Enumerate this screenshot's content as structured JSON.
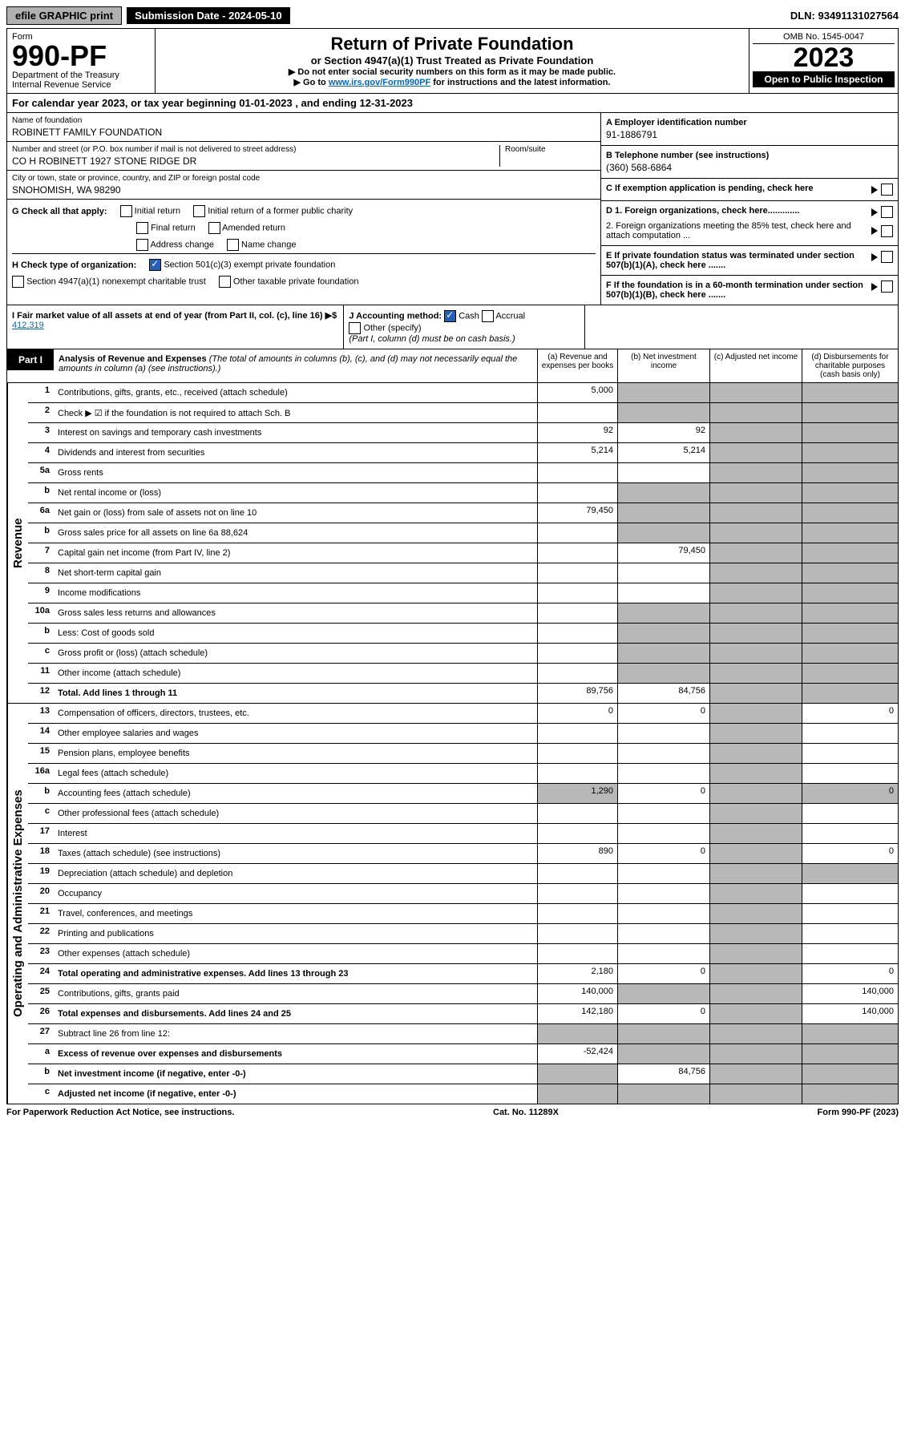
{
  "top": {
    "efile": "efile GRAPHIC print",
    "sub_label": "Submission Date - 2024-05-10",
    "dln": "DLN: 93491131027564"
  },
  "hdr": {
    "form": "Form",
    "num": "990-PF",
    "dept": "Department of the Treasury",
    "irs": "Internal Revenue Service",
    "title": "Return of Private Foundation",
    "sub": "or Section 4947(a)(1) Trust Treated as Private Foundation",
    "i1": "▶ Do not enter social security numbers on this form as it may be made public.",
    "i2_a": "▶ Go to ",
    "i2_b": "www.irs.gov/Form990PF",
    "i2_c": " for instructions and the latest information.",
    "omb": "OMB No. 1545-0047",
    "yr": "2023",
    "open": "Open to Public Inspection"
  },
  "cal": "For calendar year 2023, or tax year beginning 01-01-2023           , and ending 12-31-2023",
  "info": {
    "name_l": "Name of foundation",
    "name": "ROBINETT FAMILY FOUNDATION",
    "addr_l": "Number and street (or P.O. box number if mail is not delivered to street address)",
    "addr": "CO H ROBINETT 1927 STONE RIDGE DR",
    "room_l": "Room/suite",
    "city_l": "City or town, state or province, country, and ZIP or foreign postal code",
    "city": "SNOHOMISH, WA  98290",
    "a_l": "A Employer identification number",
    "a": "91-1886791",
    "b_l": "B Telephone number (see instructions)",
    "b": "(360) 568-6864",
    "c": "C If exemption application is pending, check here",
    "d1": "D 1. Foreign organizations, check here.............",
    "d2": "2. Foreign organizations meeting the 85% test, check here and attach computation ...",
    "e": "E  If private foundation status was terminated under section 507(b)(1)(A), check here .......",
    "f": "F  If the foundation is in a 60-month termination under section 507(b)(1)(B), check here ......."
  },
  "g": {
    "label": "G Check all that apply:",
    "o1": "Initial return",
    "o2": "Initial return of a former public charity",
    "o3": "Final return",
    "o4": "Amended return",
    "o5": "Address change",
    "o6": "Name change"
  },
  "h": {
    "label": "H Check type of organization:",
    "o1": "Section 501(c)(3) exempt private foundation",
    "o2": "Section 4947(a)(1) nonexempt charitable trust",
    "o3": "Other taxable private foundation"
  },
  "i": {
    "label": "I Fair market value of all assets at end of year (from Part II, col. (c), line 16) ▶$ ",
    "val": "412,319"
  },
  "j": {
    "label": "J Accounting method:",
    "o1": "Cash",
    "o2": "Accrual",
    "o3": "Other (specify)",
    "note": "(Part I, column (d) must be on cash basis.)"
  },
  "part1": {
    "tag": "Part I",
    "title": "Analysis of Revenue and Expenses ",
    "note": "(The total of amounts in columns (b), (c), and (d) may not necessarily equal the amounts in column (a) (see instructions).)",
    "ca": "(a)   Revenue and expenses per books",
    "cb": "(b)   Net investment income",
    "cc": "(c)   Adjusted net income",
    "cd": "(d)   Disbursements for charitable purposes (cash basis only)"
  },
  "rev": {
    "side": "Revenue",
    "rows": [
      {
        "n": "1",
        "d": "Contributions, gifts, grants, etc., received (attach schedule)",
        "a": "5,000"
      },
      {
        "n": "2",
        "d": "Check ▶ ☑ if the foundation is not required to attach Sch. B"
      },
      {
        "n": "3",
        "d": "Interest on savings and temporary cash investments",
        "a": "92",
        "b": "92"
      },
      {
        "n": "4",
        "d": "Dividends and interest from securities",
        "a": "5,214",
        "b": "5,214"
      },
      {
        "n": "5a",
        "d": "Gross rents"
      },
      {
        "n": "b",
        "d": "Net rental income or (loss)"
      },
      {
        "n": "6a",
        "d": "Net gain or (loss) from sale of assets not on line 10",
        "a": "79,450"
      },
      {
        "n": "b",
        "d": "Gross sales price for all assets on line 6a",
        "inline": "88,624"
      },
      {
        "n": "7",
        "d": "Capital gain net income (from Part IV, line 2)",
        "b": "79,450"
      },
      {
        "n": "8",
        "d": "Net short-term capital gain"
      },
      {
        "n": "9",
        "d": "Income modifications"
      },
      {
        "n": "10a",
        "d": "Gross sales less returns and allowances"
      },
      {
        "n": "b",
        "d": "Less: Cost of goods sold"
      },
      {
        "n": "c",
        "d": "Gross profit or (loss) (attach schedule)"
      },
      {
        "n": "11",
        "d": "Other income (attach schedule)"
      },
      {
        "n": "12",
        "d": "Total. Add lines 1 through 11",
        "a": "89,756",
        "b": "84,756",
        "bold": true
      }
    ]
  },
  "exp": {
    "side": "Operating and Administrative Expenses",
    "rows": [
      {
        "n": "13",
        "d": "Compensation of officers, directors, trustees, etc.",
        "a": "0",
        "b": "0",
        "dd": "0"
      },
      {
        "n": "14",
        "d": "Other employee salaries and wages"
      },
      {
        "n": "15",
        "d": "Pension plans, employee benefits"
      },
      {
        "n": "16a",
        "d": "Legal fees (attach schedule)"
      },
      {
        "n": "b",
        "d": "Accounting fees (attach schedule)",
        "a": "1,290",
        "b": "0",
        "dd": "0"
      },
      {
        "n": "c",
        "d": "Other professional fees (attach schedule)"
      },
      {
        "n": "17",
        "d": "Interest"
      },
      {
        "n": "18",
        "d": "Taxes (attach schedule) (see instructions)",
        "a": "890",
        "b": "0",
        "dd": "0"
      },
      {
        "n": "19",
        "d": "Depreciation (attach schedule) and depletion"
      },
      {
        "n": "20",
        "d": "Occupancy"
      },
      {
        "n": "21",
        "d": "Travel, conferences, and meetings"
      },
      {
        "n": "22",
        "d": "Printing and publications"
      },
      {
        "n": "23",
        "d": "Other expenses (attach schedule)"
      },
      {
        "n": "24",
        "d": "Total operating and administrative expenses. Add lines 13 through 23",
        "a": "2,180",
        "b": "0",
        "dd": "0",
        "bold": true
      },
      {
        "n": "25",
        "d": "Contributions, gifts, grants paid",
        "a": "140,000",
        "dd": "140,000"
      },
      {
        "n": "26",
        "d": "Total expenses and disbursements. Add lines 24 and 25",
        "a": "142,180",
        "b": "0",
        "dd": "140,000",
        "bold": true
      },
      {
        "n": "27",
        "d": "Subtract line 26 from line 12:"
      },
      {
        "n": "a",
        "d": "Excess of revenue over expenses and disbursements",
        "a": "-52,424",
        "bold": true
      },
      {
        "n": "b",
        "d": "Net investment income (if negative, enter -0-)",
        "b": "84,756",
        "bold": true
      },
      {
        "n": "c",
        "d": "Adjusted net income (if negative, enter -0-)",
        "bold": true
      }
    ]
  },
  "ftr": {
    "l": "For Paperwork Reduction Act Notice, see instructions.",
    "c": "Cat. No. 11289X",
    "r": "Form 990-PF (2023)"
  }
}
